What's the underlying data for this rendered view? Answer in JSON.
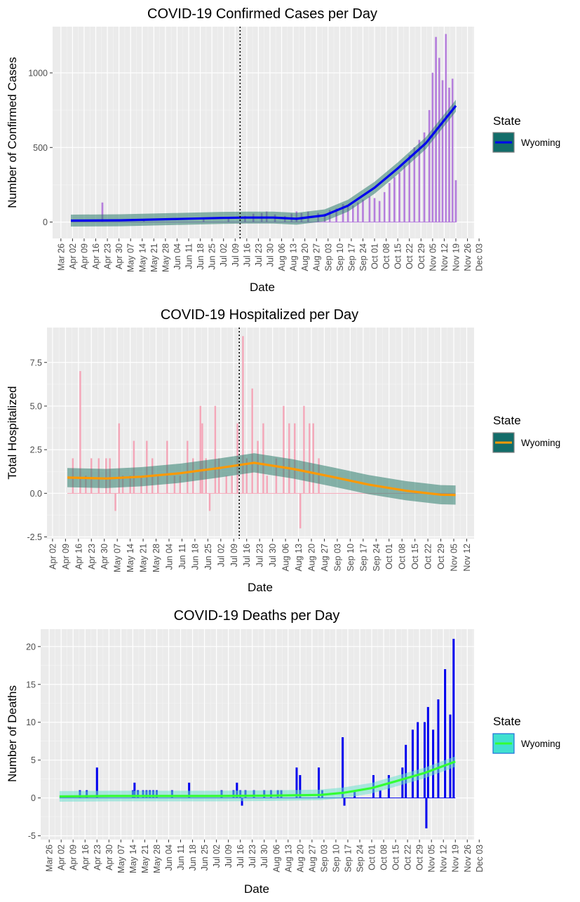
{
  "chart_data": [
    {
      "id": "cases",
      "type": "bar",
      "title": "COVID-19 Confirmed Cases per Day",
      "xlabel": "Date",
      "ylabel": "Number of Confirmed Cases",
      "x_range": [
        "2020-03-21",
        "2020-11-30"
      ],
      "ylim": [
        -110,
        1310
      ],
      "y_ticks": [
        0,
        500,
        1000
      ],
      "x_ticks": [
        "Mar 26",
        "Apr 02",
        "Apr 09",
        "Apr 16",
        "Apr 23",
        "Apr 30",
        "May 07",
        "May 14",
        "May 21",
        "May 28",
        "Jun 04",
        "Jun 11",
        "Jun 18",
        "Jun 25",
        "Jul 02",
        "Jul 09",
        "Jul 16",
        "Jul 23",
        "Jul 30",
        "Aug 06",
        "Aug 13",
        "Aug 20",
        "Aug 27",
        "Sep 03",
        "Sep 10",
        "Sep 17",
        "Sep 24",
        "Oct 01",
        "Oct 08",
        "Oct 15",
        "Oct 22",
        "Oct 29",
        "Nov 05",
        "Nov 12",
        "Nov 19",
        "Nov 26",
        "Dec 03"
      ],
      "vline_date": "2020-07-12",
      "bar_color": "#b57edc",
      "smooth_color": "#0000ee",
      "band_color": "#2e7d6e",
      "series_name": "Wyoming",
      "bars": [
        [
          "2020-04-20",
          130
        ],
        [
          "2020-05-15",
          15
        ],
        [
          "2020-06-20",
          25
        ],
        [
          "2020-07-05",
          30
        ],
        [
          "2020-07-15",
          40
        ],
        [
          "2020-07-20",
          55
        ],
        [
          "2020-07-25",
          60
        ],
        [
          "2020-07-28",
          70
        ],
        [
          "2020-08-02",
          50
        ],
        [
          "2020-08-08",
          40
        ],
        [
          "2020-08-12",
          55
        ],
        [
          "2020-08-15",
          70
        ],
        [
          "2020-08-18",
          60
        ],
        [
          "2020-08-22",
          70
        ],
        [
          "2020-08-28",
          60
        ],
        [
          "2020-09-01",
          55
        ],
        [
          "2020-09-04",
          80
        ],
        [
          "2020-09-08",
          90
        ],
        [
          "2020-09-12",
          120
        ],
        [
          "2020-09-15",
          100
        ],
        [
          "2020-09-18",
          110
        ],
        [
          "2020-09-21",
          130
        ],
        [
          "2020-09-24",
          150
        ],
        [
          "2020-09-28",
          170
        ],
        [
          "2020-10-01",
          160
        ],
        [
          "2020-10-04",
          140
        ],
        [
          "2020-10-07",
          200
        ],
        [
          "2020-10-10",
          260
        ],
        [
          "2020-10-13",
          300
        ],
        [
          "2020-10-16",
          330
        ],
        [
          "2020-10-19",
          380
        ],
        [
          "2020-10-22",
          450
        ],
        [
          "2020-10-25",
          500
        ],
        [
          "2020-10-28",
          550
        ],
        [
          "2020-10-31",
          600
        ],
        [
          "2020-11-03",
          750
        ],
        [
          "2020-11-05",
          1000
        ],
        [
          "2020-11-07",
          1240
        ],
        [
          "2020-11-09",
          1100
        ],
        [
          "2020-11-11",
          950
        ],
        [
          "2020-11-13",
          1260
        ],
        [
          "2020-11-15",
          900
        ],
        [
          "2020-11-17",
          960
        ],
        [
          "2020-11-19",
          280
        ]
      ],
      "smooth": [
        [
          "2020-04-01",
          10
        ],
        [
          "2020-05-01",
          12
        ],
        [
          "2020-06-01",
          20
        ],
        [
          "2020-07-01",
          28
        ],
        [
          "2020-07-15",
          30
        ],
        [
          "2020-08-01",
          30
        ],
        [
          "2020-08-15",
          22
        ],
        [
          "2020-09-01",
          45
        ],
        [
          "2020-09-15",
          110
        ],
        [
          "2020-10-01",
          230
        ],
        [
          "2020-10-15",
          360
        ],
        [
          "2020-11-01",
          530
        ],
        [
          "2020-11-19",
          780
        ]
      ],
      "band": 40
    },
    {
      "id": "hosp",
      "type": "bar",
      "title": "COVID-19 Hospitalized per Day",
      "xlabel": "Date",
      "ylabel": "Total Hospitalized",
      "x_range": [
        "2020-03-30",
        "2020-11-16"
      ],
      "ylim": [
        -2.6,
        9.5
      ],
      "y_ticks": [
        -2.5,
        0.0,
        2.5,
        5.0,
        7.5
      ],
      "y_tick_labels": [
        "-2.5",
        "0.0",
        "2.5",
        "5.0",
        "7.5"
      ],
      "x_ticks": [
        "Apr 02",
        "Apr 09",
        "Apr 16",
        "Apr 23",
        "Apr 30",
        "May 07",
        "May 14",
        "May 21",
        "May 28",
        "Jun 04",
        "Jun 11",
        "Jun 18",
        "Jun 25",
        "Jul 02",
        "Jul 09",
        "Jul 16",
        "Jul 23",
        "Jul 30",
        "Aug 06",
        "Aug 13",
        "Aug 20",
        "Aug 27",
        "Sep 03",
        "Sep 10",
        "Sep 17",
        "Sep 24",
        "Oct 01",
        "Oct 08",
        "Oct 15",
        "Oct 22",
        "Oct 29",
        "Nov 05",
        "Nov 12"
      ],
      "vline_date": "2020-07-12",
      "bar_color": "#f4a6b8",
      "smooth_color": "#ff9900",
      "band_color": "#2e7d6e",
      "series_name": "Wyoming",
      "bars": [
        [
          "2020-04-13",
          2
        ],
        [
          "2020-04-17",
          7
        ],
        [
          "2020-04-20",
          1
        ],
        [
          "2020-04-23",
          2
        ],
        [
          "2020-04-27",
          2
        ],
        [
          "2020-05-01",
          2
        ],
        [
          "2020-05-03",
          2
        ],
        [
          "2020-05-06",
          -1
        ],
        [
          "2020-05-08",
          4
        ],
        [
          "2020-05-10",
          1
        ],
        [
          "2020-05-14",
          1
        ],
        [
          "2020-05-16",
          3
        ],
        [
          "2020-05-20",
          1
        ],
        [
          "2020-05-23",
          3
        ],
        [
          "2020-05-26",
          2
        ],
        [
          "2020-05-29",
          1
        ],
        [
          "2020-06-03",
          3
        ],
        [
          "2020-06-07",
          1
        ],
        [
          "2020-06-10",
          1
        ],
        [
          "2020-06-14",
          3
        ],
        [
          "2020-06-17",
          2
        ],
        [
          "2020-06-21",
          5
        ],
        [
          "2020-06-22",
          4
        ],
        [
          "2020-06-24",
          2
        ],
        [
          "2020-06-26",
          -1
        ],
        [
          "2020-06-29",
          5
        ],
        [
          "2020-07-01",
          2
        ],
        [
          "2020-07-05",
          1
        ],
        [
          "2020-07-08",
          1
        ],
        [
          "2020-07-11",
          4
        ],
        [
          "2020-07-14",
          9
        ],
        [
          "2020-07-16",
          2
        ],
        [
          "2020-07-19",
          6
        ],
        [
          "2020-07-22",
          3
        ],
        [
          "2020-07-25",
          4
        ],
        [
          "2020-07-27",
          1
        ],
        [
          "2020-08-01",
          2
        ],
        [
          "2020-08-05",
          5
        ],
        [
          "2020-08-08",
          4
        ],
        [
          "2020-08-11",
          4
        ],
        [
          "2020-08-14",
          -2
        ],
        [
          "2020-08-16",
          5
        ],
        [
          "2020-08-19",
          4
        ],
        [
          "2020-08-21",
          4
        ],
        [
          "2020-08-24",
          2
        ]
      ],
      "smooth": [
        [
          "2020-04-10",
          0.9
        ],
        [
          "2020-05-01",
          0.85
        ],
        [
          "2020-05-20",
          0.95
        ],
        [
          "2020-06-10",
          1.15
        ],
        [
          "2020-07-01",
          1.45
        ],
        [
          "2020-07-20",
          1.75
        ],
        [
          "2020-08-10",
          1.4
        ],
        [
          "2020-08-31",
          0.95
        ],
        [
          "2020-09-20",
          0.5
        ],
        [
          "2020-10-10",
          0.15
        ],
        [
          "2020-10-29",
          -0.08
        ],
        [
          "2020-11-06",
          -0.1
        ]
      ],
      "band": 0.55
    },
    {
      "id": "deaths",
      "type": "bar",
      "title": "COVID-19 Deaths per Day",
      "xlabel": "Date",
      "ylabel": "Number of Deaths",
      "x_range": [
        "2020-03-21",
        "2020-11-30"
      ],
      "ylim": [
        -5.5,
        22.3
      ],
      "y_ticks": [
        -5,
        0,
        5,
        10,
        15,
        20
      ],
      "x_ticks": [
        "Mar 26",
        "Apr 02",
        "Apr 09",
        "Apr 16",
        "Apr 23",
        "Apr 30",
        "May 07",
        "May 14",
        "May 21",
        "May 28",
        "Jun 04",
        "Jun 11",
        "Jun 18",
        "Jun 25",
        "Jul 02",
        "Jul 09",
        "Jul 16",
        "Jul 23",
        "Jul 30",
        "Aug 06",
        "Aug 13",
        "Aug 20",
        "Aug 27",
        "Sep 03",
        "Sep 10",
        "Sep 17",
        "Sep 24",
        "Oct 01",
        "Oct 08",
        "Oct 15",
        "Oct 22",
        "Oct 29",
        "Nov 05",
        "Nov 12",
        "Nov 19",
        "Nov 26",
        "Dec 03"
      ],
      "bar_color": "#0000ee",
      "smooth_color": "#33ff33",
      "band_color": "#6fe0d0",
      "series_name": "Wyoming",
      "bars": [
        [
          "2020-04-13",
          1
        ],
        [
          "2020-04-17",
          1
        ],
        [
          "2020-04-23",
          4
        ],
        [
          "2020-05-14",
          1
        ],
        [
          "2020-05-15",
          2
        ],
        [
          "2020-05-17",
          1
        ],
        [
          "2020-05-20",
          1
        ],
        [
          "2020-05-22",
          1
        ],
        [
          "2020-05-24",
          1
        ],
        [
          "2020-05-26",
          1
        ],
        [
          "2020-05-28",
          1
        ],
        [
          "2020-06-06",
          1
        ],
        [
          "2020-06-16",
          2
        ],
        [
          "2020-07-05",
          1
        ],
        [
          "2020-07-12",
          1
        ],
        [
          "2020-07-14",
          2
        ],
        [
          "2020-07-16",
          1
        ],
        [
          "2020-07-17",
          -1
        ],
        [
          "2020-07-19",
          1
        ],
        [
          "2020-07-24",
          1
        ],
        [
          "2020-07-30",
          1
        ],
        [
          "2020-08-03",
          1
        ],
        [
          "2020-08-07",
          1
        ],
        [
          "2020-08-09",
          1
        ],
        [
          "2020-08-18",
          4
        ],
        [
          "2020-08-20",
          3
        ],
        [
          "2020-08-31",
          4
        ],
        [
          "2020-09-02",
          1
        ],
        [
          "2020-09-14",
          8
        ],
        [
          "2020-09-15",
          -1
        ],
        [
          "2020-09-21",
          1
        ],
        [
          "2020-10-02",
          3
        ],
        [
          "2020-10-06",
          1
        ],
        [
          "2020-10-11",
          3
        ],
        [
          "2020-10-19",
          4
        ],
        [
          "2020-10-21",
          7
        ],
        [
          "2020-10-25",
          9
        ],
        [
          "2020-10-28",
          10
        ],
        [
          "2020-11-01",
          10
        ],
        [
          "2020-11-02",
          -4
        ],
        [
          "2020-11-03",
          12
        ],
        [
          "2020-11-06",
          9
        ],
        [
          "2020-11-09",
          13
        ],
        [
          "2020-11-13",
          17
        ],
        [
          "2020-11-16",
          11
        ],
        [
          "2020-11-18",
          21
        ]
      ],
      "smooth": [
        [
          "2020-04-01",
          0.2
        ],
        [
          "2020-05-01",
          0.25
        ],
        [
          "2020-06-01",
          0.25
        ],
        [
          "2020-07-01",
          0.25
        ],
        [
          "2020-08-01",
          0.3
        ],
        [
          "2020-09-01",
          0.4
        ],
        [
          "2020-09-15",
          0.7
        ],
        [
          "2020-10-01",
          1.3
        ],
        [
          "2020-10-15",
          2.2
        ],
        [
          "2020-11-01",
          3.3
        ],
        [
          "2020-11-19",
          4.8
        ]
      ],
      "band": 0.7
    }
  ],
  "legend": {
    "title": "State",
    "label": "Wyoming"
  }
}
